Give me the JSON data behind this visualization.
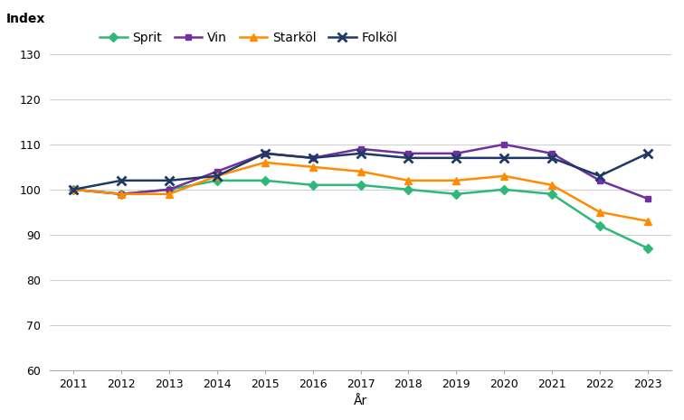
{
  "years": [
    2011,
    2012,
    2013,
    2014,
    2015,
    2016,
    2017,
    2018,
    2019,
    2020,
    2021,
    2022,
    2023
  ],
  "sprit": [
    100,
    99,
    100,
    102,
    102,
    101,
    101,
    100,
    99,
    100,
    99,
    92,
    87
  ],
  "vin": [
    100,
    99,
    100,
    104,
    108,
    107,
    109,
    108,
    108,
    110,
    108,
    102,
    98
  ],
  "starkol": [
    100,
    99,
    99,
    103,
    106,
    105,
    104,
    102,
    102,
    103,
    101,
    95,
    93
  ],
  "folkol": [
    100,
    102,
    102,
    103,
    108,
    107,
    108,
    107,
    107,
    107,
    107,
    103,
    108
  ],
  "sprit_color": "#2EB87A",
  "vin_color": "#7030A0",
  "starkol_color": "#FF8C00",
  "folkol_color": "#1F3864",
  "title": "Index",
  "xlabel": "År",
  "ylim": [
    60,
    135
  ],
  "yticks": [
    60,
    70,
    80,
    90,
    100,
    110,
    120,
    130
  ],
  "legend_labels": [
    "Sprit",
    "Vin",
    "Starköl",
    "Folköl"
  ],
  "background_color": "#ffffff",
  "grid_color": "#d0d0d0"
}
